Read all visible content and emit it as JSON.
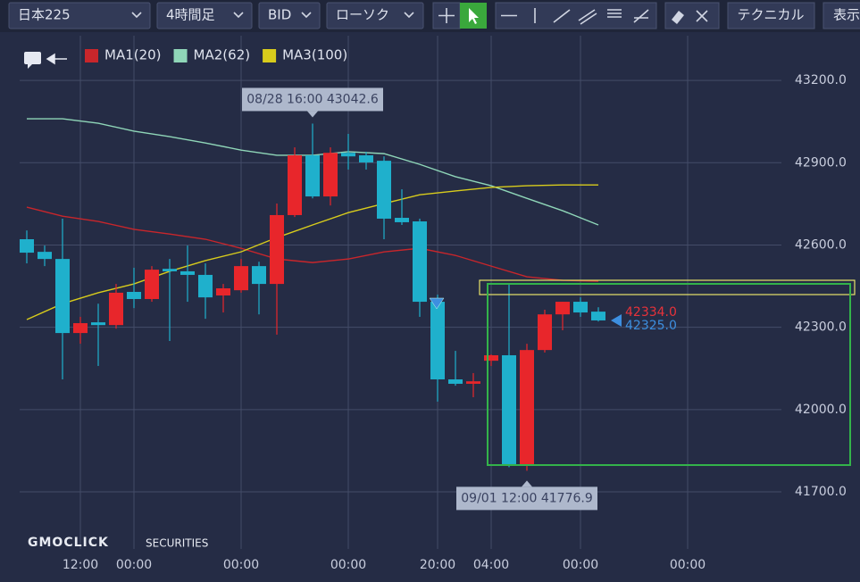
{
  "toolbar": {
    "symbol": "日本225",
    "timeframe": "4時間足",
    "price_type": "BID",
    "chart_style": "ローソク",
    "technical": "テクニカル",
    "display": "表示"
  },
  "logo": {
    "brand": "GMOCLICK",
    "suffix": "SECURITIES"
  },
  "chart_data": {
    "type": "candlestick",
    "up_color": "#e8262b",
    "down_color": "#1fb0cc",
    "x": [
      0,
      1,
      2,
      3,
      4,
      5,
      6,
      7,
      8,
      9,
      10,
      11,
      12,
      13,
      14,
      15,
      16,
      17,
      18,
      19,
      20,
      21,
      22,
      23,
      24,
      25,
      26,
      27,
      28,
      29,
      30,
      31,
      32
    ],
    "open": [
      42621,
      42575,
      42549,
      42279,
      42318,
      42308,
      42429,
      42403,
      42513,
      42504,
      42491,
      42416,
      42435,
      42523,
      42458,
      42709,
      42927,
      42777,
      42936,
      42927,
      42907,
      42699,
      42686,
      42393,
      42110,
      42094,
      42178,
      42198,
      41801,
      42217,
      42347,
      42393,
      42357
    ],
    "high": [
      42653,
      42598,
      42696,
      42338,
      42386,
      42458,
      42517,
      42523,
      42549,
      42598,
      42533,
      42458,
      42549,
      42539,
      42751,
      42956,
      43042.6,
      42956,
      43005,
      42940,
      42923,
      42803,
      42696,
      42419,
      42214,
      42133,
      42201,
      42458,
      42240,
      42364,
      42393,
      42409,
      42373
    ],
    "low": [
      42533,
      42523,
      42110,
      42240,
      42159,
      42295,
      42370,
      42393,
      42250,
      42393,
      42331,
      42354,
      42426,
      42347,
      42273,
      42702,
      42770,
      42744,
      42875,
      42875,
      42621,
      42673,
      42338,
      42029,
      42087,
      42045,
      42159,
      41790,
      41776.9,
      42208,
      42289,
      42338,
      42321
    ],
    "close": [
      42572,
      42549,
      42279,
      42315,
      42308,
      42426,
      42403,
      42510,
      42504,
      42491,
      42409,
      42442,
      42523,
      42458,
      42709,
      42927,
      42777,
      42936,
      42923,
      42901,
      42696,
      42683,
      42393,
      42110,
      42094,
      42103,
      42198,
      41801,
      42217,
      42347,
      42393,
      42354,
      42325
    ],
    "series": [
      {
        "name": "MA1(20)",
        "color": "#c8262b",
        "x": [
          0,
          2,
          4,
          6,
          8,
          10,
          12,
          14,
          16,
          18,
          20,
          22,
          24,
          26,
          28,
          30,
          32
        ],
        "values": [
          42738,
          42705,
          42686,
          42657,
          42640,
          42621,
          42588,
          42549,
          42536,
          42549,
          42575,
          42588,
          42562,
          42523,
          42484,
          42471,
          42468
        ]
      },
      {
        "name": "MA2(62)",
        "color": "#8fd6b8",
        "x": [
          0,
          2,
          4,
          6,
          8,
          10,
          12,
          14,
          16,
          18,
          20,
          22,
          24,
          26,
          28,
          30,
          32
        ],
        "values": [
          43060,
          43060,
          43044,
          43015,
          42995,
          42972,
          42946,
          42927,
          42927,
          42940,
          42933,
          42894,
          42849,
          42816,
          42770,
          42725,
          42673
        ]
      },
      {
        "name": "MA3(100)",
        "color": "#d8cc1c",
        "x": [
          0,
          2,
          4,
          6,
          8,
          10,
          12,
          14,
          16,
          18,
          20,
          22,
          24,
          26,
          28,
          30,
          32
        ],
        "values": [
          42328,
          42386,
          42426,
          42458,
          42504,
          42543,
          42575,
          42627,
          42673,
          42718,
          42751,
          42783,
          42797,
          42810,
          42816,
          42819,
          42819
        ]
      }
    ],
    "xlim": [
      -1.5,
      42.25
    ],
    "xticks": [
      {
        "value": 3,
        "label": "12:00"
      },
      {
        "value": 6,
        "label": "00:00"
      },
      {
        "value": 12,
        "label": "00:00"
      },
      {
        "value": 18,
        "label": "00:00"
      },
      {
        "value": 23,
        "label": "20:00"
      },
      {
        "value": 26,
        "label": "04:00"
      },
      {
        "value": 31,
        "label": "00:00"
      },
      {
        "value": 37,
        "label": "00:00"
      }
    ],
    "ylim": [
      41508,
      43363
    ],
    "yticks": [
      {
        "value": 43200,
        "label": "43200.0"
      },
      {
        "value": 42900,
        "label": "42900.0"
      },
      {
        "value": 42600,
        "label": "42600.0"
      },
      {
        "value": 42300,
        "label": "42300.0"
      },
      {
        "value": 42000,
        "label": "42000.0"
      },
      {
        "value": 41700,
        "label": "41700.0"
      }
    ],
    "grid": true,
    "annotations": [
      {
        "label": "08/28 16:00 43042.6",
        "x": 16,
        "value": 43042.6,
        "side": "top"
      },
      {
        "label": "09/01 12:00 41776.9",
        "x": 28,
        "value": 41776.9,
        "side": "bottom"
      }
    ],
    "price_labels": [
      {
        "value": 42334,
        "label": "42334.0",
        "color": "#e8323a"
      },
      {
        "value": 42325,
        "label": "42325.0",
        "color": "#3d8fe0"
      }
    ]
  }
}
